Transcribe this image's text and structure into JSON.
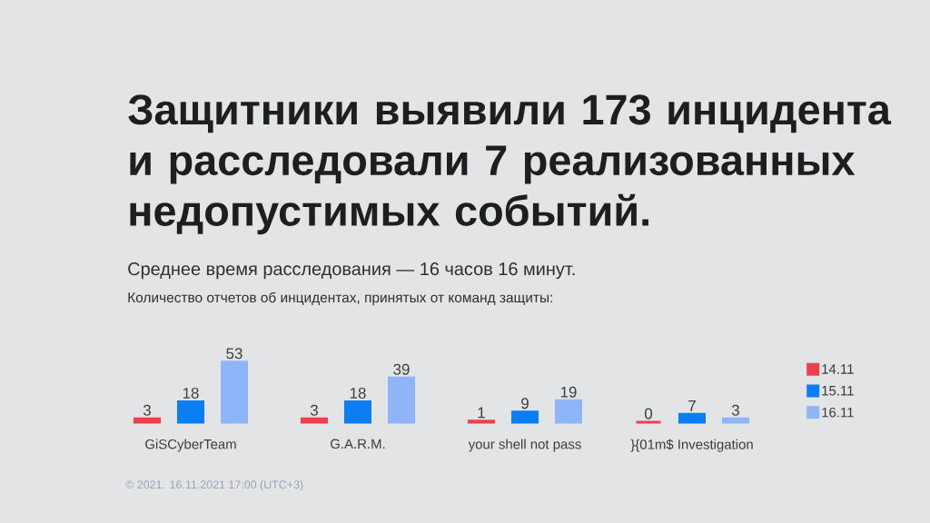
{
  "chart_data": {
    "type": "bar",
    "title": "Защитники выявили 173 инцидента и расследовали 7 реализованных недопустимых событий.",
    "subtitle": "Среднее время расследования — 16 часов 16 минут.",
    "annotations": [
      "Количество отчетов об инцидентах, принятых от команд защиты:",
      "© 2021. 16.11.2021 17:00 (UTC+3)"
    ],
    "categories": [
      "GiSCyberTeam",
      "G.A.R.M.",
      "your shell not pass",
      "}{01m$ Investigation"
    ],
    "series": [
      {
        "name": "14.11",
        "color": "#ef3f4c",
        "values": [
          3,
          3,
          1,
          0
        ]
      },
      {
        "name": "15.11",
        "color": "#0a7ef3",
        "values": [
          18,
          18,
          9,
          7
        ]
      },
      {
        "name": "16.11",
        "color": "#8db5f7",
        "values": [
          53,
          39,
          19,
          3
        ]
      }
    ],
    "data_labels": true,
    "legend": "right"
  }
}
